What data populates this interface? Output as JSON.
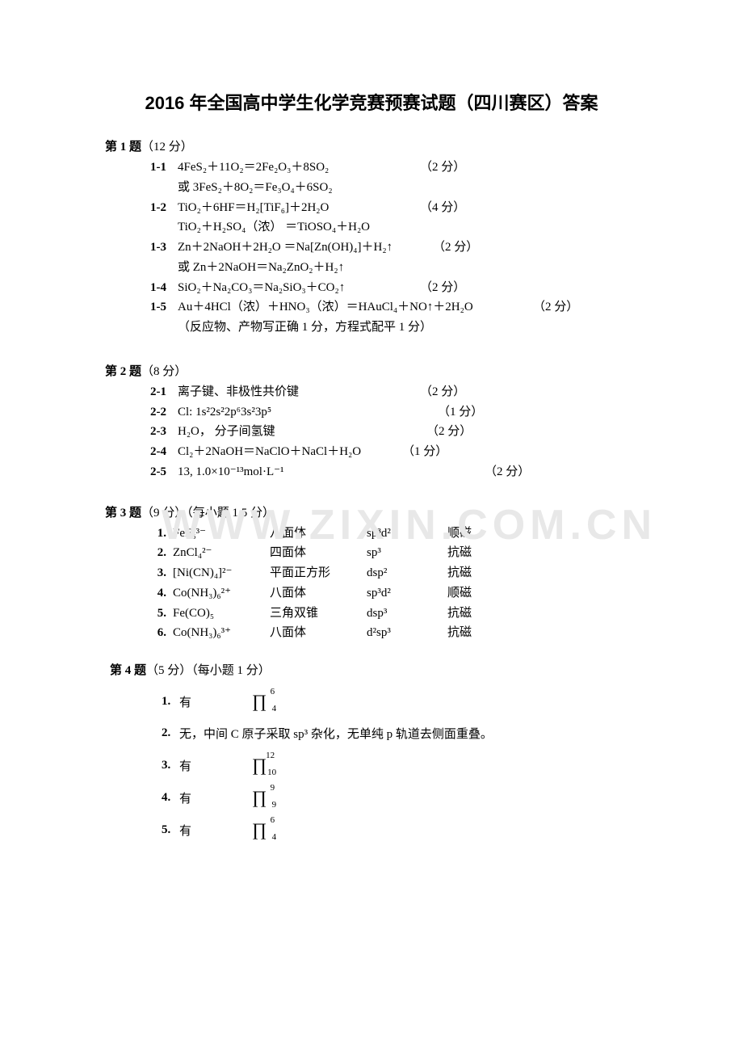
{
  "title": "2016 年全国高中学生化学竞赛预赛试题（四川赛区）答案",
  "watermark": "WWW.ZIXIN.COM.CN",
  "q1": {
    "header_bold": "第 1 题",
    "header_rest": "（12 分）",
    "items": [
      {
        "num": "1-1",
        "line1": "4FeS₂＋11O₂＝2Fe₂O₃＋8SO₂",
        "score1": "（2 分）",
        "line2": "或 3FeS₂＋8O₂＝Fe₃O₄＋6SO₂"
      },
      {
        "num": "1-2",
        "line1": "TiO₂＋6HF＝H₂[TiF₆]＋2H₂O",
        "score1": "（4 分）",
        "line2": "TiO₂＋H₂SO₄（浓） ＝TiOSO₄＋H₂O"
      },
      {
        "num": "1-3",
        "line1": "Zn＋2NaOH＋2H₂O  ＝Na[Zn(OH)₄]＋H₂↑",
        "score1": "（2 分）",
        "line2": "或 Zn＋2NaOH＝Na₂ZnO₂＋H₂↑"
      },
      {
        "num": "1-4",
        "line1": "SiO₂＋Na₂CO₃＝Na₂SiO₃＋CO₂↑",
        "score1": "（2 分）"
      },
      {
        "num": "1-5",
        "line1": "Au＋4HCl（浓）＋HNO₃（浓）＝HAuCl₄＋NO↑＋2H₂O",
        "score1": "（2 分）",
        "line2": "（反应物、产物写正确 1 分，方程式配平 1 分）"
      }
    ]
  },
  "q2": {
    "header_bold": "第 2 题",
    "header_rest": "（8 分）",
    "items": [
      {
        "num": "2-1",
        "text": "离子键、非极性共价键",
        "score": "（2 分）",
        "pad": 300
      },
      {
        "num": "2-2",
        "text": "Cl:  1s²2s²2p⁶3s²3p⁵",
        "score": "（1 分）",
        "pad": 322
      },
      {
        "num": "2-3",
        "text": "H₂O，   分子间氢键",
        "score": "（2 分）",
        "pad": 308
      },
      {
        "num": "2-4",
        "text": "Cl₂＋2NaOH＝NaClO＋NaCl＋H₂O",
        "score": "（1 分）",
        "pad": 278
      },
      {
        "num": "2-5",
        "text": "13,    1.0×10⁻¹³mol·L⁻¹",
        "score": "（2 分）",
        "pad": 380
      }
    ]
  },
  "q3": {
    "header_bold": "第 3 题",
    "header_rest": "（9 分）（每小题 1.5 分）",
    "rows": [
      {
        "n": "1.",
        "f": "FeF₆³⁻",
        "shape": "八面体",
        "hyb": "sp³d²",
        "mag": "顺磁"
      },
      {
        "n": "2.",
        "f": "ZnCl₄²⁻",
        "shape": "四面体",
        "hyb": "sp³",
        "mag": "抗磁"
      },
      {
        "n": "3.",
        "f": "[Ni(CN)₄]²⁻",
        "shape": "平面正方形",
        "hyb": "dsp²",
        "mag": "抗磁"
      },
      {
        "n": "4.",
        "f": "Co(NH₃)₆²⁺",
        "shape": "八面体",
        "hyb": "sp³d²",
        "mag": "顺磁"
      },
      {
        "n": "5.",
        "f": "Fe(CO)₅",
        "shape": "三角双锥",
        "hyb": "dsp³",
        "mag": "抗磁"
      },
      {
        "n": "6.",
        "f": "Co(NH₃)₆³⁺",
        "shape": "八面体",
        "hyb": "d²sp³",
        "mag": "抗磁"
      }
    ]
  },
  "q4": {
    "header_bold": "第 4 题",
    "header_rest": "（5 分）（每小题 1 分）",
    "items": [
      {
        "n": "1.",
        "ans": "有",
        "pi_top": "6",
        "pi_bot": "4"
      },
      {
        "n": "2.",
        "ans": "无，中间 C 原子采取 sp³ 杂化，无单纯 p 轨道去侧面重叠。"
      },
      {
        "n": "3.",
        "ans": "有",
        "pi_top": "12",
        "pi_bot": "10"
      },
      {
        "n": "4.",
        "ans": "有",
        "pi_top": "9",
        "pi_bot": "9"
      },
      {
        "n": "5.",
        "ans": "有",
        "pi_top": "6",
        "pi_bot": "4"
      }
    ]
  }
}
